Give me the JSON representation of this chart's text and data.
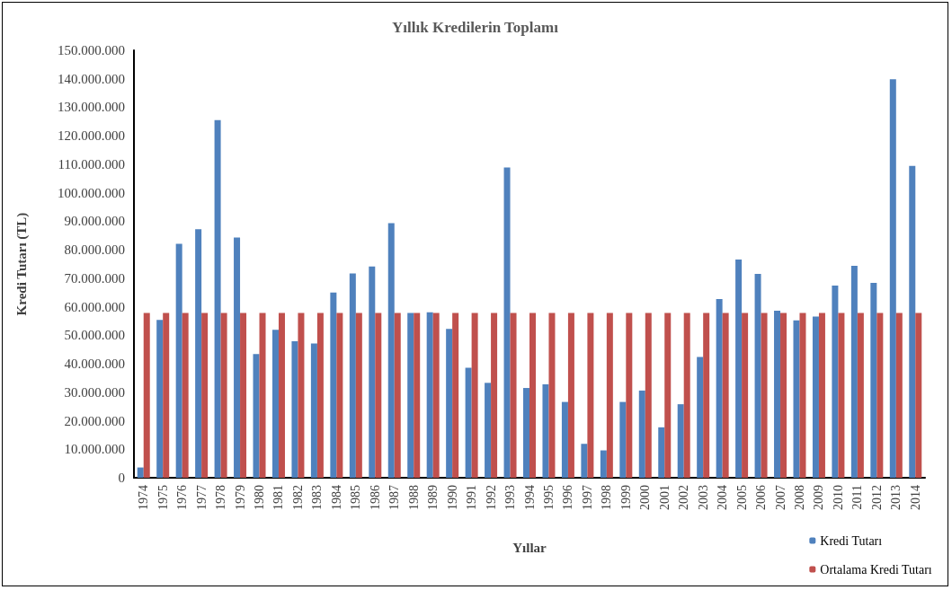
{
  "chart_data": {
    "type": "bar",
    "title": "Yıllık Kredilerin Toplamı",
    "xlabel": "Yıllar",
    "ylabel": "Kredi Tutarı (TL)",
    "categories": [
      "1974",
      "1975",
      "1976",
      "1977",
      "1978",
      "1979",
      "1980",
      "1981",
      "1982",
      "1983",
      "1984",
      "1985",
      "1986",
      "1987",
      "1988",
      "1989",
      "1990",
      "1991",
      "1992",
      "1993",
      "1994",
      "1995",
      "1996",
      "1997",
      "1998",
      "1999",
      "2000",
      "2001",
      "2002",
      "2003",
      "2004",
      "2005",
      "2006",
      "2007",
      "2008",
      "2009",
      "2010",
      "2011",
      "2012",
      "2013",
      "2014"
    ],
    "series": [
      {
        "name": "Kredi Tutarı",
        "color": "#4f81bd",
        "values": [
          3600000,
          55400000,
          82100000,
          87200000,
          125500000,
          84300000,
          43400000,
          51900000,
          47900000,
          47100000,
          65000000,
          71700000,
          74100000,
          89300000,
          57800000,
          58100000,
          52200000,
          38600000,
          33300000,
          108900000,
          31500000,
          32800000,
          26600000,
          11900000,
          9600000,
          26600000,
          30600000,
          17700000,
          25800000,
          42400000,
          62700000,
          76600000,
          71500000,
          58600000,
          55200000,
          56600000,
          67400000,
          74400000,
          68400000,
          139800000,
          109400000
        ]
      },
      {
        "name": "Ortalama Kredi Tutarı",
        "color": "#c0504d",
        "values": [
          57800000,
          57800000,
          57800000,
          57800000,
          57800000,
          57800000,
          57800000,
          57800000,
          57800000,
          57800000,
          57800000,
          57800000,
          57800000,
          57800000,
          57800000,
          57800000,
          57800000,
          57800000,
          57800000,
          57800000,
          57800000,
          57800000,
          57800000,
          57800000,
          57800000,
          57800000,
          57800000,
          57800000,
          57800000,
          57800000,
          57800000,
          57800000,
          57800000,
          57800000,
          57800000,
          57800000,
          57800000,
          57800000,
          57800000,
          57800000,
          57800000
        ]
      }
    ],
    "ylim": [
      0,
      150000000
    ],
    "yticks": [
      0,
      {
        "value": 10000000,
        "label": "10.000.000"
      },
      {
        "value": 20000000,
        "label": "20.000.000"
      },
      {
        "value": 30000000,
        "label": "30.000.000"
      },
      {
        "value": 40000000,
        "label": "40.000.000"
      },
      {
        "value": 50000000,
        "label": "50.000.000"
      },
      {
        "value": 60000000,
        "label": "60.000.000"
      },
      {
        "value": 70000000,
        "label": "70.000.000"
      },
      {
        "value": 80000000,
        "label": "80.000.000"
      },
      {
        "value": 90000000,
        "label": "90.000.000"
      },
      {
        "value": 100000000,
        "label": "100.000.000"
      },
      {
        "value": 110000000,
        "label": "110.000.000"
      },
      {
        "value": 120000000,
        "label": "120.000.000"
      },
      {
        "value": 130000000,
        "label": "130.000.000"
      },
      {
        "value": 140000000,
        "label": "140.000.000"
      },
      {
        "value": 150000000,
        "label": "150.000.000"
      }
    ],
    "grid": false,
    "legend": "bottom right"
  }
}
